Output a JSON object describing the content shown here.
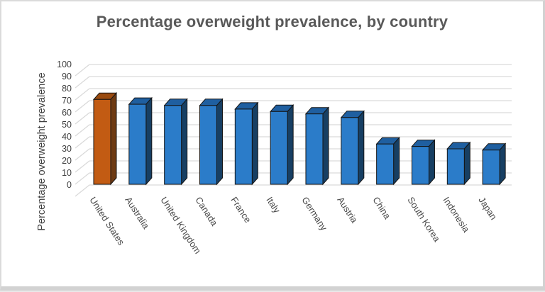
{
  "frame": {
    "background": "#ffffff",
    "border_color": "#d2d2d2"
  },
  "chart_data": {
    "type": "bar",
    "style": "3d",
    "title": "Percentage overweight prevalence, by country",
    "xlabel": "",
    "ylabel": "Percentage overweight prevalence",
    "categories": [
      "United States",
      "Australia",
      "United Kingdom",
      "Canada",
      "France",
      "Italy",
      "Germany",
      "Austria",
      "China",
      "South Korea",
      "Indonesia",
      "Japan"
    ],
    "values": [
      71,
      67,
      66,
      66,
      63,
      61,
      59,
      56,
      34,
      32,
      30,
      29
    ],
    "ylim": [
      0,
      100
    ],
    "ytick_step": 10,
    "yticks": [
      0,
      10,
      20,
      30,
      40,
      50,
      60,
      70,
      80,
      90,
      100
    ],
    "grid": true,
    "legend": "none",
    "highlight_index": 0,
    "colors": {
      "bar_default_front": "#2b7cc9",
      "bar_default_top": "#1f5fa0",
      "bar_default_side": "#173f63",
      "bar_highlight_front": "#c25b13",
      "bar_highlight_top": "#9a4a0e",
      "bar_highlight_side": "#6e3a12",
      "bar_outline": "#151515",
      "gridline": "#d9d9d9",
      "title_text": "#595959",
      "axis_text": "#3f3f3f"
    }
  }
}
